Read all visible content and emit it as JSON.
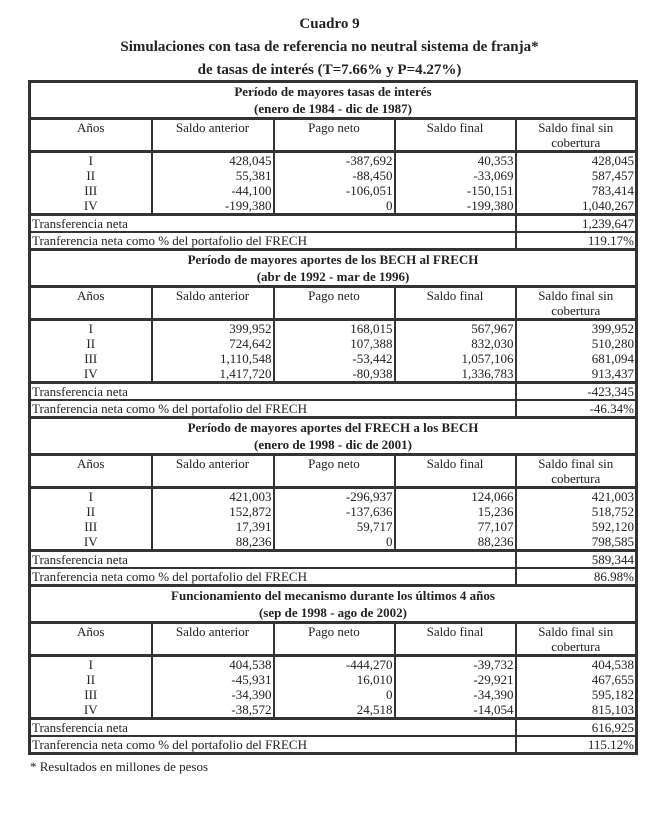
{
  "title": {
    "line1": "Cuadro 9",
    "line2": "Simulaciones con tasa de referencia no neutral sistema de franja*",
    "line3": "de tasas de interés (T=7.66% y P=4.27%)"
  },
  "columns": [
    "Años",
    "Saldo anterior",
    "Pago neto",
    "Saldo final",
    "Saldo final sin cobertura"
  ],
  "transfer_label": "Transferencia neta",
  "percent_label": "Tranferencia neta como % del portafolio del FRECH",
  "sections": [
    {
      "title": "Período de mayores tasas de interés",
      "subtitle": "(enero de 1984 - dic de 1987)",
      "rows": [
        [
          "I",
          "428,045",
          "-387,692",
          "40,353",
          "428,045"
        ],
        [
          "II",
          "55,381",
          "-88,450",
          "-33,069",
          "587,457"
        ],
        [
          "III",
          "-44,100",
          "-106,051",
          "-150,151",
          "783,414"
        ],
        [
          "IV",
          "-199,380",
          "0",
          "-199,380",
          "1,040,267"
        ]
      ],
      "transfer": "1,239,647",
      "percent": "119.17%"
    },
    {
      "title": "Período de mayores aportes de los BECH al FRECH",
      "subtitle": "(abr de 1992 - mar de 1996)",
      "rows": [
        [
          "I",
          "399,952",
          "168,015",
          "567,967",
          "399,952"
        ],
        [
          "II",
          "724,642",
          "107,388",
          "832,030",
          "510,280"
        ],
        [
          "III",
          "1,110,548",
          "-53,442",
          "1,057,106",
          "681,094"
        ],
        [
          "IV",
          "1,417,720",
          "-80,938",
          "1,336,783",
          "913,437"
        ]
      ],
      "transfer": "-423,345",
      "percent": "-46.34%"
    },
    {
      "title": "Período de mayores aportes del FRECH a los BECH",
      "subtitle": "(enero de 1998 - dic de 2001)",
      "rows": [
        [
          "I",
          "421,003",
          "-296,937",
          "124,066",
          "421,003"
        ],
        [
          "II",
          "152,872",
          "-137,636",
          "15,236",
          "518,752"
        ],
        [
          "III",
          "17,391",
          "59,717",
          "77,107",
          "592,120"
        ],
        [
          "IV",
          "88,236",
          "0",
          "88,236",
          "798,585"
        ]
      ],
      "transfer": "589,344",
      "percent": "86.98%"
    },
    {
      "title": "Funcionamiento del mecanismo durante los últimos 4 años",
      "subtitle": "(sep de 1998 - ago de 2002)",
      "rows": [
        [
          "I",
          "404,538",
          "-444,270",
          "-39,732",
          "404,538"
        ],
        [
          "II",
          "-45,931",
          "16,010",
          "-29,921",
          "467,655"
        ],
        [
          "III",
          "-34,390",
          "0",
          "-34,390",
          "595,182"
        ],
        [
          "IV",
          "-38,572",
          "24,518",
          "-14,054",
          "815,103"
        ]
      ],
      "transfer": "616,925",
      "percent": "115.12%"
    }
  ],
  "footnote": "* Resultados en millones de pesos"
}
